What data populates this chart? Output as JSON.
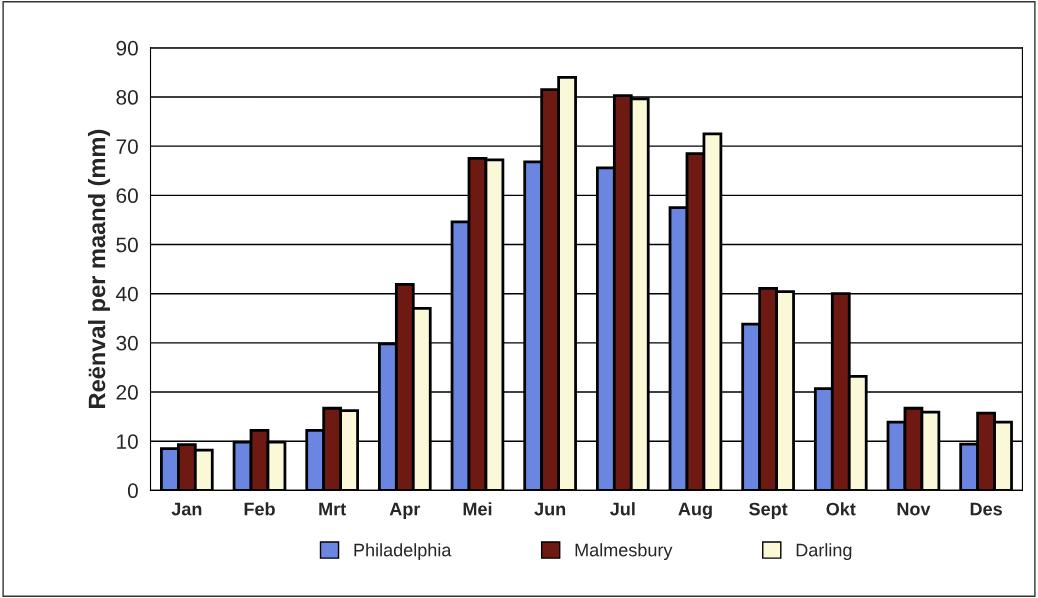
{
  "chart_data": {
    "type": "bar",
    "ylabel": "Reënval per maand (mm)",
    "categories": [
      "Jan",
      "Feb",
      "Mrt",
      "Apr",
      "Mei",
      "Jun",
      "Jul",
      "Aug",
      "Sept",
      "Okt",
      "Nov",
      "Des"
    ],
    "series": [
      {
        "name": "Philadelphia",
        "color": "#6a86e0",
        "values": [
          8.5,
          9.8,
          12.2,
          29.8,
          54.6,
          66.8,
          65.6,
          57.5,
          33.8,
          20.7,
          13.9,
          9.4
        ]
      },
      {
        "name": "Malmesbury",
        "color": "#6e1a12",
        "values": [
          9.3,
          12.2,
          16.7,
          41.9,
          67.5,
          81.5,
          80.3,
          68.5,
          41.1,
          40.0,
          16.7,
          15.7
        ]
      },
      {
        "name": "Darling",
        "color": "#fbf8d8",
        "values": [
          8.2,
          9.8,
          16.2,
          37.0,
          67.2,
          84.0,
          79.6,
          72.5,
          40.4,
          23.2,
          15.9,
          13.9
        ]
      }
    ],
    "ylim": [
      0,
      90
    ],
    "yticks": [
      0,
      10,
      20,
      30,
      40,
      50,
      60,
      70,
      80,
      90
    ],
    "grid": "y",
    "legend": "bottom"
  }
}
